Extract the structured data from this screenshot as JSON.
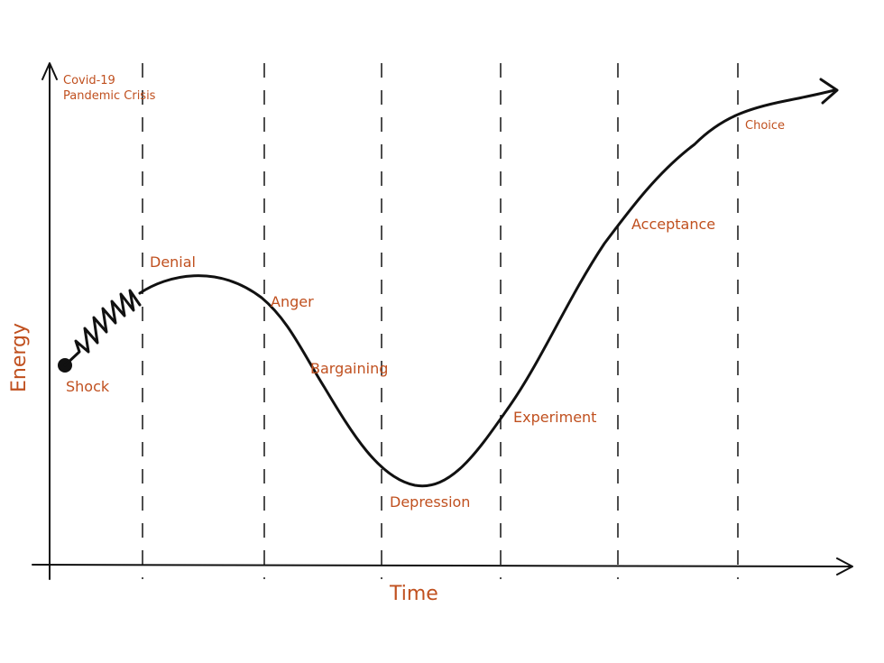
{
  "title_lines": [
    "Covid-19",
    "Pandemic Crisis"
  ],
  "axes": {
    "y_label": "Energy",
    "x_label": "Time"
  },
  "stages": [
    {
      "label": "Shock"
    },
    {
      "label": "Denial"
    },
    {
      "label": "Anger"
    },
    {
      "label": "Bargaining"
    },
    {
      "label": "Depression"
    },
    {
      "label": "Experiment"
    },
    {
      "label": "Acceptance"
    },
    {
      "label": "Choice"
    }
  ]
}
